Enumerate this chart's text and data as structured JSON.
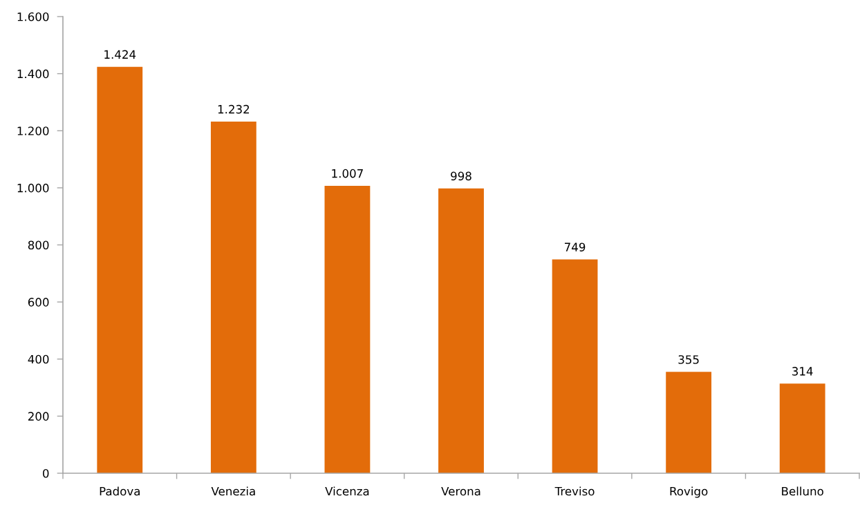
{
  "chart_data": {
    "type": "bar",
    "categories": [
      "Padova",
      "Venezia",
      "Vicenza",
      "Verona",
      "Treviso",
      "Rovigo",
      "Belluno"
    ],
    "values": [
      1424,
      1232,
      1007,
      998,
      749,
      355,
      314
    ],
    "value_labels": [
      "1.424",
      "1.232",
      "1.007",
      "998",
      "749",
      "355",
      "314"
    ],
    "color": "#e36c0a",
    "ylim": [
      0,
      1600
    ],
    "yticks": [
      0,
      200,
      400,
      600,
      800,
      {
        "value": 1000,
        "label": "1.000"
      },
      {
        "value": 1200,
        "label": "1.200"
      },
      {
        "value": 1400,
        "label": "1.400"
      },
      {
        "value": 1600,
        "label": "1.600"
      }
    ],
    "grid": false,
    "legend": false
  }
}
